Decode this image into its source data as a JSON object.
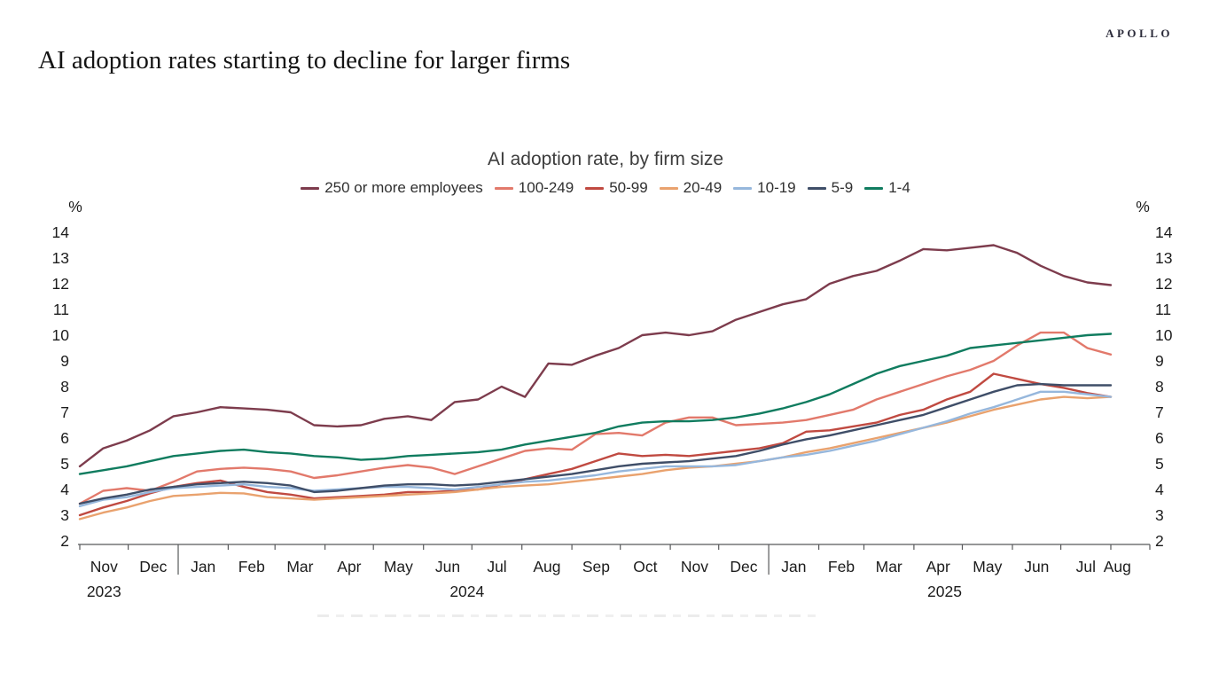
{
  "page": {
    "logo": "APOLLO",
    "headline": "AI adoption rates starting to decline for larger firms"
  },
  "chart_data": {
    "type": "line",
    "title": "AI adoption rate, by firm size",
    "unit_left": "%",
    "unit_right": "%",
    "ylim": [
      2,
      14
    ],
    "y_ticks": [
      14,
      13,
      12,
      11,
      10,
      9,
      8,
      7,
      6,
      5,
      4,
      3,
      2
    ],
    "grid": false,
    "legend_position": "top",
    "x_axis": {
      "months": [
        "Nov",
        "Dec",
        "Jan",
        "Feb",
        "Mar",
        "Apr",
        "May",
        "Jun",
        "Jul",
        "Aug",
        "Sep",
        "Oct",
        "Nov",
        "Dec",
        "Jan",
        "Feb",
        "Mar",
        "Apr",
        "May",
        "Jun",
        "Jul",
        "Aug"
      ],
      "years": [
        {
          "label": "2023"
        },
        {
          "label": "2024"
        },
        {
          "label": "2025"
        }
      ],
      "range_start": "Nov 2023",
      "range_end": "Aug 2025"
    },
    "series": [
      {
        "name": "250 or more employees",
        "color": "#7d3c4d",
        "values": [
          4.9,
          5.6,
          5.9,
          6.3,
          6.85,
          7.0,
          7.2,
          7.15,
          7.1,
          7.0,
          6.5,
          6.45,
          6.5,
          6.75,
          6.85,
          6.7,
          7.4,
          7.5,
          8.0,
          7.6,
          8.9,
          8.85,
          9.2,
          9.5,
          10.0,
          10.1,
          10.0,
          10.15,
          10.6,
          10.9,
          11.2,
          11.4,
          12.0,
          12.3,
          12.5,
          12.9,
          13.35,
          13.3,
          13.4,
          13.5,
          13.2,
          12.7,
          12.3,
          12.05,
          11.95
        ]
      },
      {
        "name": "100-249",
        "color": "#e2796b",
        "values": [
          3.45,
          3.95,
          4.05,
          3.95,
          4.3,
          4.7,
          4.8,
          4.85,
          4.8,
          4.7,
          4.45,
          4.55,
          4.7,
          4.85,
          4.95,
          4.85,
          4.6,
          4.9,
          5.2,
          5.5,
          5.6,
          5.55,
          6.15,
          6.2,
          6.1,
          6.6,
          6.8,
          6.8,
          6.5,
          6.55,
          6.6,
          6.7,
          6.9,
          7.1,
          7.5,
          7.8,
          8.1,
          8.4,
          8.65,
          9.0,
          9.6,
          10.1,
          10.1,
          9.5,
          9.25
        ]
      },
      {
        "name": "50-99",
        "color": "#c04a41",
        "values": [
          3.0,
          3.3,
          3.55,
          3.85,
          4.1,
          4.25,
          4.35,
          4.1,
          3.9,
          3.8,
          3.65,
          3.7,
          3.75,
          3.8,
          3.9,
          3.9,
          3.95,
          4.0,
          4.2,
          4.4,
          4.6,
          4.8,
          5.1,
          5.4,
          5.3,
          5.35,
          5.3,
          5.4,
          5.5,
          5.6,
          5.8,
          6.25,
          6.3,
          6.45,
          6.6,
          6.9,
          7.1,
          7.5,
          7.8,
          8.5,
          8.3,
          8.1,
          7.95,
          7.75,
          7.6
        ]
      },
      {
        "name": "20-49",
        "color": "#e9a26e",
        "values": [
          2.85,
          3.1,
          3.3,
          3.55,
          3.75,
          3.8,
          3.87,
          3.85,
          3.7,
          3.65,
          3.6,
          3.65,
          3.7,
          3.75,
          3.8,
          3.85,
          3.9,
          4.0,
          4.1,
          4.15,
          4.2,
          4.3,
          4.4,
          4.5,
          4.6,
          4.75,
          4.85,
          4.9,
          5.0,
          5.1,
          5.25,
          5.45,
          5.6,
          5.8,
          6.0,
          6.2,
          6.4,
          6.6,
          6.85,
          7.1,
          7.3,
          7.5,
          7.6,
          7.55,
          7.6
        ]
      },
      {
        "name": "10-19",
        "color": "#96b7dc",
        "values": [
          3.35,
          3.6,
          3.7,
          3.9,
          4.05,
          4.1,
          4.15,
          4.2,
          4.1,
          4.05,
          3.95,
          4.0,
          4.05,
          4.1,
          4.1,
          4.05,
          4.0,
          4.1,
          4.2,
          4.3,
          4.35,
          4.45,
          4.55,
          4.7,
          4.8,
          4.9,
          4.9,
          4.9,
          4.95,
          5.1,
          5.25,
          5.35,
          5.5,
          5.7,
          5.9,
          6.15,
          6.4,
          6.65,
          6.95,
          7.2,
          7.5,
          7.8,
          7.8,
          7.7,
          7.6
        ]
      },
      {
        "name": "5-9",
        "color": "#3f4e68",
        "values": [
          3.45,
          3.65,
          3.8,
          4.0,
          4.1,
          4.2,
          4.25,
          4.3,
          4.25,
          4.15,
          3.9,
          3.95,
          4.05,
          4.15,
          4.2,
          4.2,
          4.15,
          4.2,
          4.3,
          4.4,
          4.5,
          4.6,
          4.75,
          4.9,
          5.0,
          5.05,
          5.1,
          5.2,
          5.3,
          5.5,
          5.75,
          5.95,
          6.1,
          6.3,
          6.5,
          6.7,
          6.9,
          7.2,
          7.5,
          7.8,
          8.05,
          8.1,
          8.05,
          8.05,
          8.05
        ]
      },
      {
        "name": "1-4",
        "color": "#107c5f",
        "values": [
          4.6,
          4.75,
          4.9,
          5.1,
          5.3,
          5.4,
          5.5,
          5.55,
          5.45,
          5.4,
          5.3,
          5.25,
          5.15,
          5.2,
          5.3,
          5.35,
          5.4,
          5.45,
          5.55,
          5.75,
          5.9,
          6.05,
          6.2,
          6.45,
          6.6,
          6.65,
          6.65,
          6.7,
          6.8,
          6.95,
          7.15,
          7.4,
          7.7,
          8.1,
          8.5,
          8.8,
          9.0,
          9.2,
          9.5,
          9.6,
          9.7,
          9.8,
          9.9,
          10.0,
          10.05
        ]
      }
    ]
  }
}
